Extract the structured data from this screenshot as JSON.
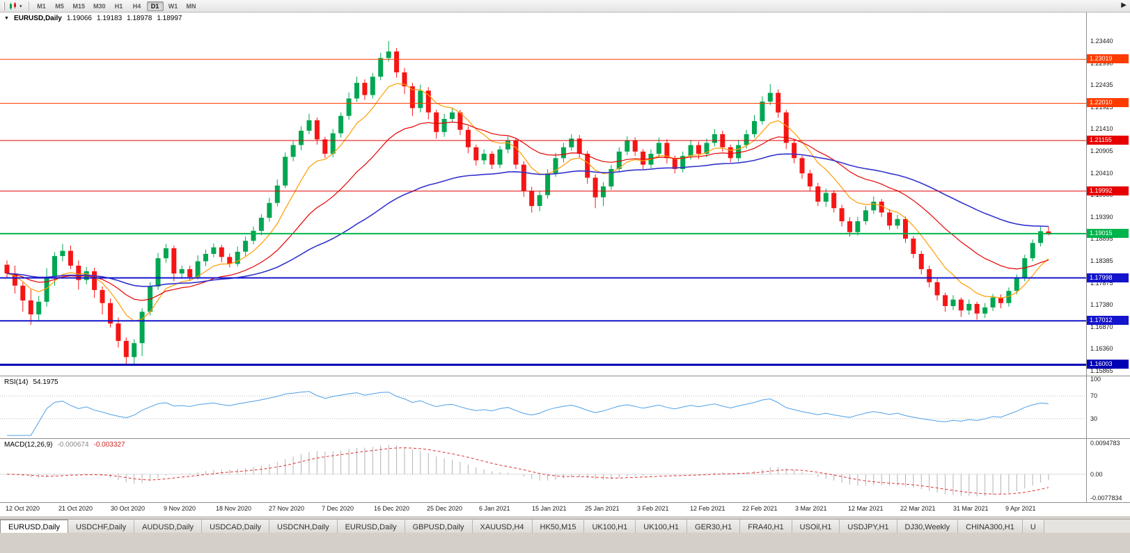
{
  "toolbar": {
    "timeframes": [
      "M1",
      "M5",
      "M15",
      "M30",
      "H1",
      "H4",
      "D1",
      "W1",
      "MN"
    ],
    "active_timeframe": "D1",
    "icons": {
      "chart_type_caret": "▾",
      "overflow_arrow": "▶"
    }
  },
  "chart": {
    "title": {
      "caret": "▼",
      "symbol": "EURUSD,Daily",
      "open": "1.19066",
      "high": "1.19183",
      "low": "1.18978",
      "close": "1.18997"
    }
  },
  "indicators": {
    "rsi": {
      "name": "RSI(14)",
      "value": "54.1975",
      "color": "#4d9fe8",
      "period": 14,
      "levels": [
        70,
        30
      ],
      "axis_labels": [
        {
          "v": 100,
          "t": "100"
        },
        {
          "v": 70,
          "t": "70"
        },
        {
          "v": 30,
          "t": "30"
        }
      ]
    },
    "macd": {
      "name": "MACD(12,26,9)",
      "value_macd": "-0.000674",
      "value_signal": "-0.003327",
      "fast": 12,
      "slow": 26,
      "signal": 9,
      "axis_top": "0.0094783",
      "axis_zero": "0.00",
      "axis_bottom": "-0.0077834",
      "histogram_color": "#b2b2b2",
      "signal_color": "#e03232"
    }
  },
  "chart_data": {
    "type": "candlestick",
    "title": "EURUSD,Daily",
    "ylim": [
      1.15865,
      1.2344
    ],
    "y_ticks": [
      "1.23440",
      "1.22990",
      "1.22435",
      "1.21925",
      "1.21410",
      "1.20905",
      "1.20410",
      "1.19900",
      "1.19390",
      "1.18895",
      "1.18385",
      "1.17875",
      "1.17380",
      "1.16870",
      "1.16360",
      "1.15865"
    ],
    "x_labels": [
      "12 Oct 2020",
      "21 Oct 2020",
      "30 Oct 2020",
      "9 Nov 2020",
      "18 Nov 2020",
      "27 Nov 2020",
      "7 Dec 2020",
      "16 Dec 2020",
      "25 Dec 2020",
      "6 Jan 2021",
      "15 Jan 2021",
      "25 Jan 2021",
      "3 Feb 2021",
      "12 Feb 2021",
      "22 Feb 2021",
      "3 Mar 2021",
      "12 Mar 2021",
      "22 Mar 2021",
      "31 Mar 2021",
      "9 Apr 2021"
    ],
    "colors": {
      "bull": "#00a651",
      "bear": "#f51515"
    },
    "moving_averages": [
      {
        "name": "ma-fast-orange",
        "period": 8,
        "color": "#ff9c00"
      },
      {
        "name": "ma-mid-red",
        "period": 21,
        "color": "#e60000"
      },
      {
        "name": "ma-slow-blue",
        "period": 55,
        "color": "#3232cc"
      }
    ],
    "horizontal_lines": [
      {
        "price": 1.23019,
        "label": "1.23019",
        "color": "#ff3c00",
        "width": 1
      },
      {
        "price": 1.2201,
        "label": "1.22010",
        "color": "#ff3c00",
        "width": 1
      },
      {
        "price": 1.21155,
        "label": "1.21155",
        "color": "#e60000",
        "width": 1
      },
      {
        "price": 1.19992,
        "label": "1.19992",
        "color": "#e60000",
        "width": 1
      },
      {
        "price": 1.19015,
        "label": "1.19015",
        "color": "#00b44c",
        "width": 2
      },
      {
        "price": 1.17998,
        "label": "1.17998",
        "color": "#1414cc",
        "width": 2
      },
      {
        "price": 1.17012,
        "label": "1.17012",
        "color": "#1414cc",
        "width": 2
      },
      {
        "price": 1.16003,
        "label": "1.16003",
        "color": "#0000b4",
        "width": 3
      }
    ],
    "candles": [
      [
        1.183,
        1.184,
        1.18,
        1.181
      ],
      [
        1.181,
        1.1828,
        1.1764,
        1.1782
      ],
      [
        1.1782,
        1.179,
        1.1722,
        1.1748
      ],
      [
        1.1748,
        1.1773,
        1.1692,
        1.1716
      ],
      [
        1.1716,
        1.1759,
        1.1701,
        1.1745
      ],
      [
        1.1745,
        1.1822,
        1.1734,
        1.1802
      ],
      [
        1.1802,
        1.1859,
        1.1782,
        1.185
      ],
      [
        1.185,
        1.1878,
        1.1838,
        1.1862
      ],
      [
        1.1862,
        1.1874,
        1.182,
        1.1828
      ],
      [
        1.1828,
        1.184,
        1.1773,
        1.1795
      ],
      [
        1.1795,
        1.1825,
        1.1785,
        1.1815
      ],
      [
        1.1815,
        1.1823,
        1.1754,
        1.1772
      ],
      [
        1.1772,
        1.178,
        1.1716,
        1.1742
      ],
      [
        1.1742,
        1.1752,
        1.1686,
        1.1695
      ],
      [
        1.1695,
        1.1709,
        1.164,
        1.1655
      ],
      [
        1.1655,
        1.1663,
        1.16,
        1.1618
      ],
      [
        1.1618,
        1.1659,
        1.1602,
        1.165
      ],
      [
        1.165,
        1.173,
        1.162,
        1.1722
      ],
      [
        1.1722,
        1.179,
        1.1714,
        1.178
      ],
      [
        1.178,
        1.1857,
        1.1772,
        1.1845
      ],
      [
        1.1845,
        1.1878,
        1.1835,
        1.1868
      ],
      [
        1.1868,
        1.1874,
        1.1792,
        1.181
      ],
      [
        1.181,
        1.1828,
        1.1798,
        1.182
      ],
      [
        1.182,
        1.1828,
        1.1793,
        1.1802
      ],
      [
        1.1802,
        1.1852,
        1.1796,
        1.1838
      ],
      [
        1.1838,
        1.1865,
        1.1827,
        1.1855
      ],
      [
        1.1855,
        1.1879,
        1.1847,
        1.187
      ],
      [
        1.187,
        1.1876,
        1.1836,
        1.1848
      ],
      [
        1.1848,
        1.1856,
        1.1824,
        1.1832
      ],
      [
        1.1832,
        1.1872,
        1.1826,
        1.186
      ],
      [
        1.186,
        1.1895,
        1.185,
        1.1885
      ],
      [
        1.1885,
        1.1918,
        1.1877,
        1.1908
      ],
      [
        1.1908,
        1.1946,
        1.1898,
        1.1938
      ],
      [
        1.1938,
        1.1984,
        1.1929,
        1.1972
      ],
      [
        1.1972,
        1.2026,
        1.1964,
        1.2012
      ],
      [
        1.2012,
        1.2088,
        1.2006,
        1.2078
      ],
      [
        1.2078,
        1.2114,
        1.2068,
        1.2105
      ],
      [
        1.2105,
        1.2148,
        1.2093,
        1.2138
      ],
      [
        1.2138,
        1.2177,
        1.213,
        1.2162
      ],
      [
        1.2162,
        1.2168,
        1.2106,
        1.2118
      ],
      [
        1.2118,
        1.2124,
        1.2075,
        1.2085
      ],
      [
        1.2085,
        1.2142,
        1.2077,
        1.2132
      ],
      [
        1.2132,
        1.218,
        1.2122,
        1.2172
      ],
      [
        1.2172,
        1.2226,
        1.2163,
        1.2212
      ],
      [
        1.2212,
        1.2262,
        1.2204,
        1.2248
      ],
      [
        1.2248,
        1.2256,
        1.2209,
        1.222
      ],
      [
        1.222,
        1.2271,
        1.2212,
        1.2262
      ],
      [
        1.2262,
        1.2317,
        1.2254,
        1.2305
      ],
      [
        1.2305,
        1.2344,
        1.2297,
        1.232
      ],
      [
        1.232,
        1.2328,
        1.226,
        1.2272
      ],
      [
        1.2272,
        1.2282,
        1.2222,
        1.224
      ],
      [
        1.224,
        1.2248,
        1.2172,
        1.219
      ],
      [
        1.219,
        1.2244,
        1.218,
        1.223
      ],
      [
        1.223,
        1.2238,
        1.2164,
        1.218
      ],
      [
        1.218,
        1.2186,
        1.212,
        1.2135
      ],
      [
        1.2135,
        1.2177,
        1.2124,
        1.2165
      ],
      [
        1.2165,
        1.2189,
        1.2157,
        1.218
      ],
      [
        1.218,
        1.2186,
        1.2128,
        1.214
      ],
      [
        1.214,
        1.2148,
        1.2086,
        1.21
      ],
      [
        1.21,
        1.2106,
        1.2058,
        1.207
      ],
      [
        1.207,
        1.2095,
        1.206,
        1.2085
      ],
      [
        1.2085,
        1.2091,
        1.205,
        1.206
      ],
      [
        1.206,
        1.2103,
        1.2052,
        1.2095
      ],
      [
        1.2095,
        1.2125,
        1.2086,
        1.2115
      ],
      [
        1.2115,
        1.2121,
        1.205,
        1.206
      ],
      [
        1.206,
        1.2068,
        1.1986,
        1.2
      ],
      [
        1.2,
        1.2009,
        1.195,
        1.1965
      ],
      [
        1.1965,
        1.2,
        1.1953,
        1.199
      ],
      [
        1.199,
        1.205,
        1.1982,
        1.204
      ],
      [
        1.204,
        1.2087,
        1.2032,
        1.2075
      ],
      [
        1.2075,
        1.211,
        1.2065,
        1.21
      ],
      [
        1.21,
        1.213,
        1.2092,
        1.212
      ],
      [
        1.212,
        1.2128,
        1.2075,
        1.2085
      ],
      [
        1.2085,
        1.2091,
        1.2016,
        1.203
      ],
      [
        1.203,
        1.2038,
        1.196,
        1.1985
      ],
      [
        1.1985,
        1.202,
        1.1965,
        1.201
      ],
      [
        1.201,
        1.2059,
        1.2002,
        1.205
      ],
      [
        1.205,
        1.21,
        1.2042,
        1.209
      ],
      [
        1.209,
        1.2125,
        1.2082,
        1.2115
      ],
      [
        1.2115,
        1.2123,
        1.208,
        1.209
      ],
      [
        1.209,
        1.2096,
        1.205,
        1.206
      ],
      [
        1.206,
        1.2095,
        1.2052,
        1.2085
      ],
      [
        1.2085,
        1.2122,
        1.2077,
        1.211
      ],
      [
        1.211,
        1.2118,
        1.2063,
        1.2075
      ],
      [
        1.2075,
        1.2081,
        1.204,
        1.205
      ],
      [
        1.205,
        1.209,
        1.2042,
        1.208
      ],
      [
        1.208,
        1.2117,
        1.2072,
        1.2105
      ],
      [
        1.2105,
        1.2113,
        1.2073,
        1.2085
      ],
      [
        1.2085,
        1.212,
        1.2077,
        1.211
      ],
      [
        1.211,
        1.2142,
        1.2102,
        1.213
      ],
      [
        1.213,
        1.2138,
        1.209,
        1.21
      ],
      [
        1.21,
        1.2106,
        1.2065,
        1.2075
      ],
      [
        1.2075,
        1.2117,
        1.2067,
        1.2105
      ],
      [
        1.2105,
        1.214,
        1.2097,
        1.213
      ],
      [
        1.213,
        1.2174,
        1.2122,
        1.216
      ],
      [
        1.216,
        1.2217,
        1.2152,
        1.2205
      ],
      [
        1.2205,
        1.2245,
        1.2197,
        1.2225
      ],
      [
        1.2225,
        1.2233,
        1.2168,
        1.218
      ],
      [
        1.218,
        1.2186,
        1.2096,
        1.211
      ],
      [
        1.211,
        1.2118,
        1.2063,
        1.2075
      ],
      [
        1.2075,
        1.2081,
        1.2028,
        1.204
      ],
      [
        1.204,
        1.2048,
        1.2,
        1.201
      ],
      [
        1.201,
        1.2018,
        1.1965,
        1.1975
      ],
      [
        1.1975,
        1.2005,
        1.1963,
        1.1995
      ],
      [
        1.1995,
        1.2001,
        1.195,
        1.196
      ],
      [
        1.196,
        1.1968,
        1.1918,
        1.193
      ],
      [
        1.193,
        1.1939,
        1.1895,
        1.1905
      ],
      [
        1.1905,
        1.194,
        1.1897,
        1.193
      ],
      [
        1.193,
        1.1965,
        1.1922,
        1.1955
      ],
      [
        1.1955,
        1.1987,
        1.1947,
        1.1975
      ],
      [
        1.1975,
        1.1981,
        1.194,
        1.195
      ],
      [
        1.195,
        1.1958,
        1.191,
        1.192
      ],
      [
        1.192,
        1.1945,
        1.1912,
        1.1935
      ],
      [
        1.1935,
        1.1941,
        1.188,
        1.189
      ],
      [
        1.189,
        1.1896,
        1.1845,
        1.1855
      ],
      [
        1.1855,
        1.1862,
        1.1808,
        1.182
      ],
      [
        1.182,
        1.1828,
        1.1778,
        1.179
      ],
      [
        1.179,
        1.1798,
        1.1748,
        1.176
      ],
      [
        1.176,
        1.1766,
        1.1722,
        1.1735
      ],
      [
        1.1735,
        1.176,
        1.1726,
        1.175
      ],
      [
        1.175,
        1.1755,
        1.171,
        1.1725
      ],
      [
        1.1725,
        1.175,
        1.1715,
        1.174
      ],
      [
        1.174,
        1.1745,
        1.1704,
        1.1718
      ],
      [
        1.1718,
        1.1742,
        1.1708,
        1.1732
      ],
      [
        1.1732,
        1.1763,
        1.1724,
        1.1755
      ],
      [
        1.1755,
        1.1762,
        1.173,
        1.1742
      ],
      [
        1.1742,
        1.1778,
        1.1734,
        1.177
      ],
      [
        1.177,
        1.1808,
        1.1762,
        1.18
      ],
      [
        1.18,
        1.1853,
        1.1792,
        1.1845
      ],
      [
        1.1845,
        1.1888,
        1.1838,
        1.188
      ],
      [
        1.188,
        1.1917,
        1.1872,
        1.1907
      ],
      [
        1.19066,
        1.19183,
        1.18978,
        1.18997
      ]
    ]
  },
  "tabs": {
    "items": [
      {
        "label": "EURUSD,Daily",
        "active": true
      },
      {
        "label": "USDCHF,Daily"
      },
      {
        "label": "AUDUSD,Daily"
      },
      {
        "label": "USDCAD,Daily"
      },
      {
        "label": "USDCNH,Daily"
      },
      {
        "label": "EURUSD,Daily"
      },
      {
        "label": "GBPUSD,Daily"
      },
      {
        "label": "XAUUSD,H4"
      },
      {
        "label": "HK50,M15"
      },
      {
        "label": "UK100,H1"
      },
      {
        "label": "UK100,H1"
      },
      {
        "label": "GER30,H1"
      },
      {
        "label": "FRA40,H1"
      },
      {
        "label": "USOil,H1"
      },
      {
        "label": "USDJPY,H1"
      },
      {
        "label": "DJ30,Weekly"
      },
      {
        "label": "CHINA300,H1"
      },
      {
        "label": "U"
      }
    ]
  }
}
